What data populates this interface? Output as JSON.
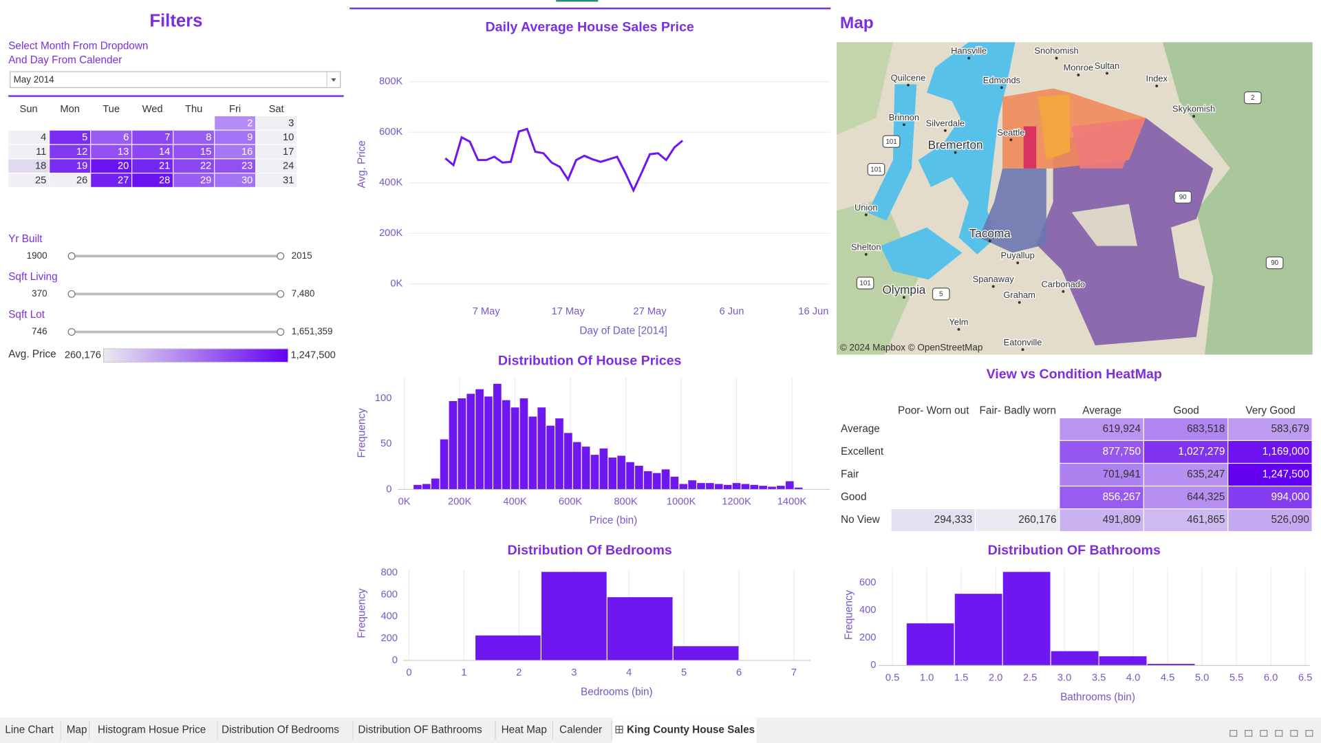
{
  "filters": {
    "title": "Filters",
    "instructions": [
      "Select Month From Dropdown",
      "And Day From Calender"
    ],
    "month": "May 2014",
    "calendar": {
      "weekdays": [
        "Sun",
        "Mon",
        "Tue",
        "Wed",
        "Thu",
        "Fri",
        "Sat"
      ],
      "weeks": [
        [
          null,
          null,
          null,
          null,
          null,
          {
            "day": 2,
            "color": "#b38cf5"
          },
          {
            "day": 3,
            "color": "#f0eff3"
          }
        ],
        [
          {
            "day": 4,
            "color": "#f0eff3"
          },
          {
            "day": 5,
            "color": "#7a2cf2"
          },
          {
            "day": 6,
            "color": "#9a5df4"
          },
          {
            "day": 7,
            "color": "#8c47f3"
          },
          {
            "day": 8,
            "color": "#9a5df4"
          },
          {
            "day": 9,
            "color": "#a472f4"
          },
          {
            "day": 10,
            "color": "#f0eff3"
          }
        ],
        [
          {
            "day": 11,
            "color": "#f0eff3"
          },
          {
            "day": 12,
            "color": "#8239f2"
          },
          {
            "day": 13,
            "color": "#9350f3"
          },
          {
            "day": 14,
            "color": "#8c47f3"
          },
          {
            "day": 15,
            "color": "#9350f3"
          },
          {
            "day": 16,
            "color": "#a776f4"
          },
          {
            "day": 17,
            "color": "#f0eff3"
          }
        ],
        [
          {
            "day": 18,
            "color": "#e2daf0"
          },
          {
            "day": 19,
            "color": "#7a2cf2"
          },
          {
            "day": 20,
            "color": "#6a12f0"
          },
          {
            "day": 21,
            "color": "#7626f2"
          },
          {
            "day": 22,
            "color": "#8c47f3"
          },
          {
            "day": 23,
            "color": "#9350f3"
          },
          {
            "day": 24,
            "color": "#f0eff3"
          }
        ],
        [
          {
            "day": 25,
            "color": "#f0eff3"
          },
          {
            "day": 26,
            "color": "#f0eff3"
          },
          {
            "day": 27,
            "color": "#7221f1"
          },
          {
            "day": 28,
            "color": "#6a12f0"
          },
          {
            "day": 29,
            "color": "#9a5df4"
          },
          {
            "day": 30,
            "color": "#a472f4"
          },
          {
            "day": 31,
            "color": "#f0eff3"
          }
        ]
      ]
    },
    "sliders": [
      {
        "label": "Yr Built",
        "min": 1900,
        "max": 2015
      },
      {
        "label": "Sqft Living",
        "min": 370,
        "max": {
          "value": 7480,
          "label": "7,480"
        }
      },
      {
        "label": "Sqft Lot",
        "min": 746,
        "max": {
          "value": 1651359,
          "label": "1,651,359"
        }
      }
    ],
    "color_legend": {
      "label": "Avg. Price",
      "min": {
        "value": 260176,
        "label": "260,176"
      },
      "max": {
        "value": 1247500,
        "label": "1,247,500"
      },
      "colors": [
        "#ebe9f1",
        "#6300f0"
      ]
    }
  },
  "chart_data": [
    {
      "type": "line",
      "title": "Daily Average House Sales Price",
      "x_label": "Day of Date [2014]",
      "y_label": "Avg. Price",
      "x": [
        "2014-05-02",
        "2014-05-03",
        "2014-05-04",
        "2014-05-05",
        "2014-05-06",
        "2014-05-07",
        "2014-05-08",
        "2014-05-09",
        "2014-05-10",
        "2014-05-11",
        "2014-05-12",
        "2014-05-13",
        "2014-05-14",
        "2014-05-15",
        "2014-05-16",
        "2014-05-17",
        "2014-05-18",
        "2014-05-19",
        "2014-05-20",
        "2014-05-21",
        "2014-05-22",
        "2014-05-23",
        "2014-05-24",
        "2014-05-25",
        "2014-05-26",
        "2014-05-27",
        "2014-05-28",
        "2014-05-29",
        "2014-05-30",
        "2014-05-31"
      ],
      "values": [
        497000,
        470000,
        580000,
        563000,
        490000,
        490000,
        503000,
        480000,
        483000,
        603000,
        613000,
        523000,
        517000,
        480000,
        463000,
        413000,
        490000,
        507000,
        493000,
        483000,
        493000,
        503000,
        440000,
        370000,
        440000,
        513000,
        517000,
        490000,
        540000,
        567000
      ],
      "color": "#6e17f0",
      "xlim": [
        "2014-04-27",
        "2014-06-18"
      ],
      "xticks": [
        {
          "value": "2014-05-07",
          "label": "7 May"
        },
        {
          "value": "2014-05-17",
          "label": "17 May"
        },
        {
          "value": "2014-05-27",
          "label": "27 May"
        },
        {
          "value": "2014-06-06",
          "label": "6 Jun"
        },
        {
          "value": "2014-06-16",
          "label": "16 Jun"
        }
      ],
      "ylim": [
        0,
        850000
      ],
      "yticks": [
        {
          "value": 0,
          "label": "0K"
        },
        {
          "value": 200000,
          "label": "200K"
        },
        {
          "value": 400000,
          "label": "400K"
        },
        {
          "value": 600000,
          "label": "600K"
        },
        {
          "value": 800000,
          "label": "800K"
        }
      ],
      "grid": "y"
    },
    {
      "type": "histogram",
      "title": "Distribution Of House Prices",
      "x_label": "Price (bin)",
      "y_label": "Frequency",
      "bins": [
        32000,
        64000,
        96000,
        128000,
        160000,
        192000,
        224000,
        256000,
        288000,
        320000,
        352000,
        384000,
        416000,
        448000,
        480000,
        512000,
        544000,
        576000,
        608000,
        640000,
        672000,
        704000,
        736000,
        768000,
        800000,
        832000,
        864000,
        896000,
        928000,
        960000,
        992000,
        1024000,
        1056000,
        1088000,
        1120000,
        1152000,
        1184000,
        1216000,
        1248000,
        1280000,
        1312000,
        1344000,
        1376000,
        1408000,
        1440000
      ],
      "values": [
        5,
        6,
        12,
        55,
        97,
        100,
        105,
        110,
        102,
        116,
        98,
        90,
        100,
        80,
        90,
        70,
        78,
        62,
        52,
        47,
        38,
        45,
        35,
        37,
        30,
        26,
        20,
        18,
        22,
        14,
        6,
        10,
        7,
        7,
        6,
        5,
        7,
        6,
        5,
        4,
        3,
        4,
        9,
        2
      ],
      "color": "#6e17f0",
      "xlim": [
        -24000,
        1537000
      ],
      "xticks": [
        {
          "value": 0,
          "label": "0K"
        },
        {
          "value": 200000,
          "label": "200K"
        },
        {
          "value": 400000,
          "label": "400K"
        },
        {
          "value": 600000,
          "label": "600K"
        },
        {
          "value": 800000,
          "label": "800K"
        },
        {
          "value": 1000000,
          "label": "1000K"
        },
        {
          "value": 1200000,
          "label": "1200K"
        },
        {
          "value": 1400000,
          "label": "1400K"
        }
      ],
      "ylim": [
        0,
        123
      ],
      "yticks": [
        0,
        50,
        100
      ],
      "grid": "x"
    },
    {
      "type": "histogram",
      "title": "Distribution Of Bedrooms",
      "x_label": "Bedrooms (bin)",
      "y_label": "Frequency",
      "bins": [
        0,
        1.2,
        2.4,
        3.6,
        4.8,
        6.0
      ],
      "values": [
        3,
        228,
        808,
        577,
        130
      ],
      "color": "#6e17f0",
      "xlim": [
        -0.1,
        7.3
      ],
      "xticks": [
        0,
        1,
        2,
        3,
        4,
        5,
        6,
        7
      ],
      "ylim": [
        0,
        830
      ],
      "yticks": [
        0,
        200,
        400,
        600,
        800
      ],
      "grid": "x"
    },
    {
      "type": "histogram",
      "title": "Distribution OF Bathrooms",
      "x_label": "Bathrooms (bin)",
      "y_label": "Frequency",
      "bins": [
        0.7,
        1.4,
        2.1,
        2.8,
        3.5,
        4.2,
        4.9
      ],
      "values": [
        306,
        521,
        680,
        104,
        67,
        12
      ],
      "color": "#6e17f0",
      "xlim": [
        0.3,
        6.57
      ],
      "xticks": [
        0.5,
        {
          "value": 1,
          "label": "1.0"
        },
        1.5,
        {
          "value": 2,
          "label": "2.0"
        },
        2.5,
        {
          "value": 3,
          "label": "3.0"
        },
        3.5,
        {
          "value": 4,
          "label": "4.0"
        },
        4.5,
        {
          "value": 5,
          "label": "5.0"
        },
        5.5,
        {
          "value": 6,
          "label": "6.0"
        },
        6.5
      ],
      "ylim": [
        0,
        710
      ],
      "yticks": [
        0,
        200,
        400,
        600
      ],
      "grid": "x"
    },
    {
      "type": "heatmap",
      "title": "View vs Condition HeatMap",
      "x": [
        "Poor- Worn out",
        "Fair- Badly worn",
        "Average",
        "Good",
        "Very Good"
      ],
      "y": [
        "Average",
        "Excellent",
        "Fair",
        "Good",
        "No View"
      ],
      "values": [
        [
          null,
          null,
          619924,
          683518,
          583679
        ],
        [
          null,
          null,
          877750,
          1027279,
          1169000
        ],
        [
          null,
          null,
          701941,
          635247,
          1247500
        ],
        [
          null,
          null,
          856267,
          644325,
          994000
        ],
        [
          294333,
          260176,
          491809,
          461865,
          526090
        ]
      ],
      "value_labels": [
        [
          null,
          null,
          "619,924",
          "683,518",
          "583,679"
        ],
        [
          null,
          null,
          "877,750",
          "1,027,279",
          "1,169,000"
        ],
        [
          null,
          null,
          "701,941",
          "635,247",
          "1,247,500"
        ],
        [
          null,
          null,
          "856,267",
          "644,325",
          "994,000"
        ],
        [
          "294,333",
          "260,176",
          "491,809",
          "461,865",
          "526,090"
        ]
      ]
    }
  ],
  "map": {
    "title": "Map",
    "attribution": "© 2024 Mapbox © OpenStreetMap",
    "places": [
      "Hansville",
      "Snohomish",
      "Monroe",
      "Sultan",
      "Index",
      "Quilcene",
      "Edmonds",
      "Skykomish",
      "Brinnon",
      "Silverdale",
      "Seattle",
      "Bremerton",
      "Union",
      "Tacoma",
      "Shelton",
      "Puyallup",
      "Spanaway",
      "Carbonado",
      "Olympia",
      "Graham",
      "Yelm",
      "Eatonville"
    ],
    "shields": [
      "101",
      "101",
      "101",
      "2",
      "90",
      "90",
      "5"
    ]
  },
  "tabs": {
    "items": [
      "Line Chart",
      "Map",
      "Histogram Hosue Price",
      "Distribution Of Bedrooms",
      "Distribution OF Bathrooms",
      "Heat Map",
      "Calender",
      "King County House Sales"
    ],
    "active": 7
  }
}
